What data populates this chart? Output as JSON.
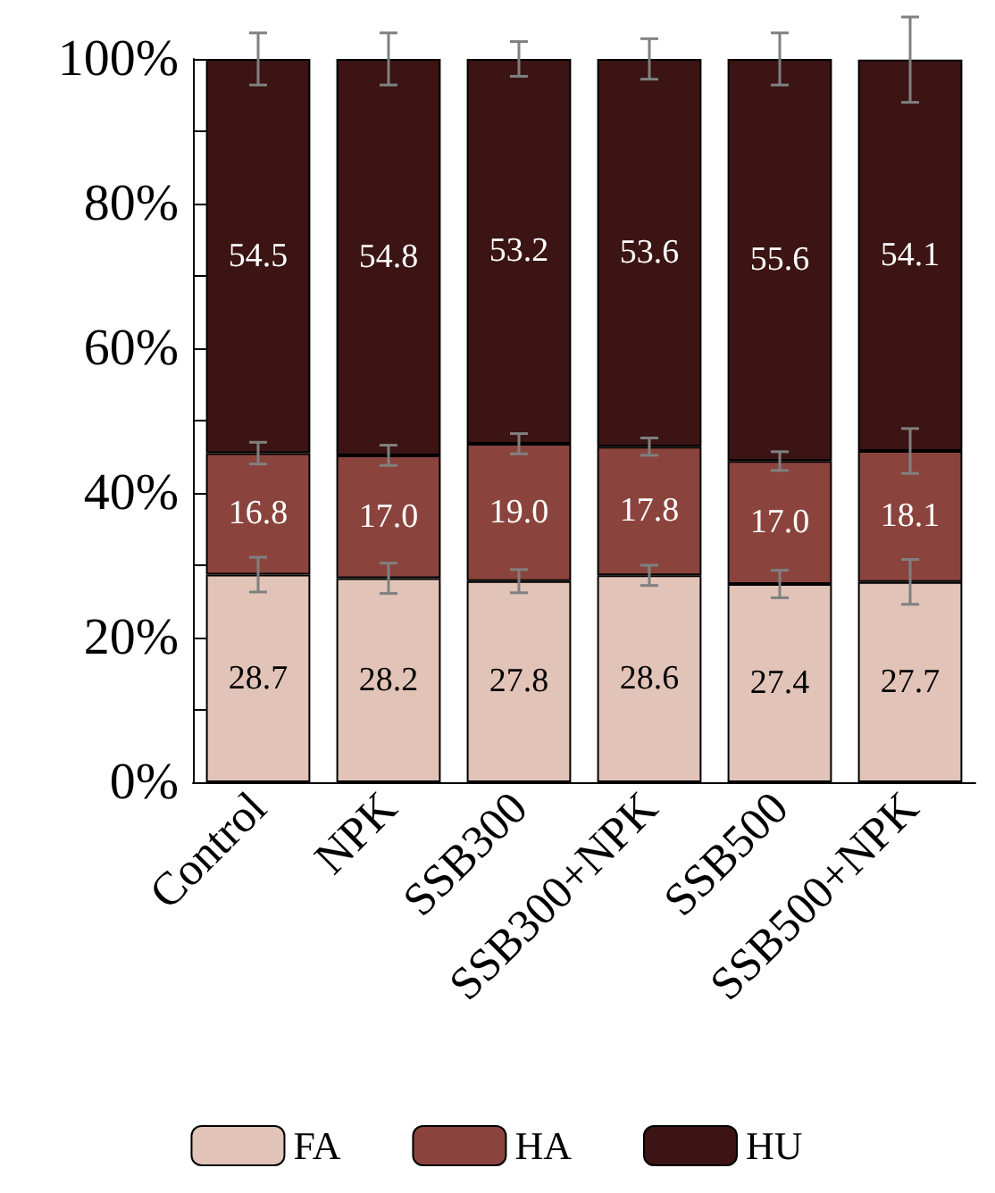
{
  "chart_data": {
    "type": "bar",
    "stacked": true,
    "categories": [
      "Control",
      "NPK",
      "SSB300",
      "SSB300+NPK",
      "SSB500",
      "SSB500+NPK"
    ],
    "series": [
      {
        "name": "FA",
        "color": "#e2c3b8",
        "values": [
          28.7,
          28.2,
          27.8,
          28.6,
          27.4,
          27.7
        ],
        "errors": [
          2.4,
          2.1,
          1.6,
          1.4,
          1.9,
          3.1
        ],
        "value_labels": [
          "28.7",
          "28.2",
          "27.8",
          "28.6",
          "27.4",
          "27.7"
        ]
      },
      {
        "name": "HA",
        "color": "#8b443d",
        "values": [
          16.8,
          17.0,
          19.0,
          17.8,
          17.0,
          18.1
        ],
        "errors": [
          1.5,
          1.4,
          1.4,
          1.2,
          1.3,
          3.1
        ],
        "value_labels": [
          "16.8",
          "17.0",
          "19.0",
          "17.8",
          "17.0",
          "18.1"
        ]
      },
      {
        "name": "HU",
        "color": "#3b1413",
        "values": [
          54.5,
          54.8,
          53.2,
          53.6,
          55.6,
          54.1
        ],
        "errors": [
          3.6,
          3.6,
          2.4,
          2.8,
          3.6,
          5.9
        ],
        "value_labels": [
          "54.5",
          "54.8",
          "53.2",
          "53.6",
          "55.6",
          "54.1"
        ]
      }
    ],
    "ylim": [
      0,
      100
    ],
    "yticks": [
      {
        "value": 0,
        "label": "0%"
      },
      {
        "value": 10,
        "label": null
      },
      {
        "value": 20,
        "label": "20%"
      },
      {
        "value": 30,
        "label": null
      },
      {
        "value": 40,
        "label": "40%"
      },
      {
        "value": 50,
        "label": null
      },
      {
        "value": 60,
        "label": "60%"
      },
      {
        "value": 70,
        "label": null
      },
      {
        "value": 80,
        "label": "80%"
      },
      {
        "value": 90,
        "label": null
      },
      {
        "value": 100,
        "label": "100%"
      }
    ],
    "grid": false,
    "legend": "bottom"
  }
}
